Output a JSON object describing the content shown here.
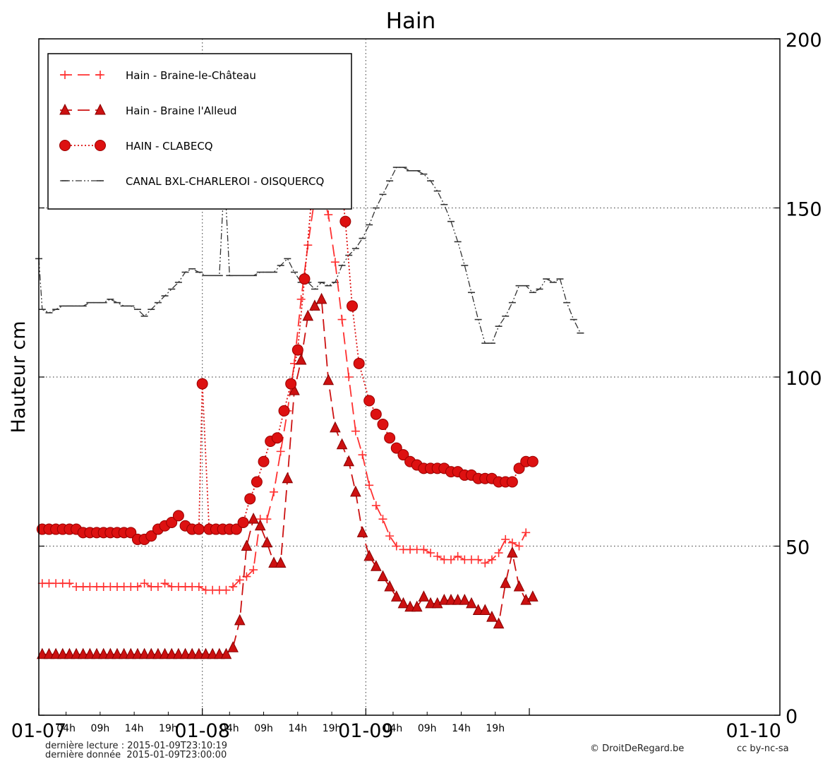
{
  "chart_data": {
    "type": "line",
    "title": "Hain",
    "ylabel": "Hauteur cm",
    "xlabel": "",
    "ylim": [
      0,
      200
    ],
    "xlim_hours": [
      0,
      72
    ],
    "y_axis_side": "right",
    "yticks": [
      0,
      50,
      100,
      150,
      200
    ],
    "grid": true,
    "legend_position": "top-left",
    "x_major_ticks": [
      {
        "hour": 0,
        "label": "01-07"
      },
      {
        "hour": 24,
        "label": "01-08"
      },
      {
        "hour": 48,
        "label": "01-09"
      },
      {
        "hour": 72,
        "label": "01-10"
      }
    ],
    "x_minor_ticks": [
      {
        "hour": 4,
        "label": "04h"
      },
      {
        "hour": 9,
        "label": "09h"
      },
      {
        "hour": 14,
        "label": "14h"
      },
      {
        "hour": 19,
        "label": "19h"
      },
      {
        "hour": 28,
        "label": "04h"
      },
      {
        "hour": 33,
        "label": "09h"
      },
      {
        "hour": 38,
        "label": "14h"
      },
      {
        "hour": 43,
        "label": "19h"
      },
      {
        "hour": 52,
        "label": "04h"
      },
      {
        "hour": 57,
        "label": "09h"
      },
      {
        "hour": 62,
        "label": "14h"
      },
      {
        "hour": 67,
        "label": "19h"
      }
    ],
    "series": [
      {
        "name": "Hain - Braine-le-Château",
        "color": "#ff3030",
        "marker": "plus",
        "line": "dashed",
        "points": [
          [
            0.5,
            39
          ],
          [
            1.5,
            39
          ],
          [
            2.5,
            39
          ],
          [
            3.5,
            39
          ],
          [
            4.5,
            39
          ],
          [
            5.5,
            38
          ],
          [
            6.5,
            38
          ],
          [
            7.5,
            38
          ],
          [
            8.5,
            38
          ],
          [
            9.5,
            38
          ],
          [
            10.5,
            38
          ],
          [
            11.5,
            38
          ],
          [
            12.5,
            38
          ],
          [
            13.5,
            38
          ],
          [
            14.5,
            38
          ],
          [
            15.5,
            39
          ],
          [
            16.5,
            38
          ],
          [
            17.5,
            38
          ],
          [
            18.5,
            39
          ],
          [
            19.5,
            38
          ],
          [
            20.5,
            38
          ],
          [
            21.5,
            38
          ],
          [
            22.5,
            38
          ],
          [
            23.5,
            38
          ],
          [
            24.5,
            37
          ],
          [
            25.5,
            37
          ],
          [
            26.5,
            37
          ],
          [
            27.5,
            37
          ],
          [
            28.5,
            38
          ],
          [
            29.5,
            40
          ],
          [
            30.5,
            41
          ],
          [
            31.5,
            43
          ],
          [
            32.5,
            58
          ],
          [
            33.5,
            58
          ],
          [
            34.5,
            66
          ],
          [
            35.5,
            78
          ],
          [
            36.5,
            90
          ],
          [
            37.5,
            104
          ],
          [
            38.5,
            123
          ],
          [
            39.5,
            139
          ],
          [
            40.5,
            153
          ],
          [
            41.5,
            155
          ],
          [
            42.5,
            148
          ],
          [
            43.5,
            134
          ],
          [
            44.5,
            117
          ],
          [
            45.5,
            100
          ],
          [
            46.5,
            84
          ],
          [
            47.5,
            77
          ],
          [
            48.5,
            68
          ],
          [
            49.5,
            62
          ],
          [
            50.5,
            58
          ],
          [
            51.5,
            53
          ],
          [
            52.5,
            50
          ],
          [
            53.5,
            49
          ],
          [
            54.5,
            49
          ],
          [
            55.5,
            49
          ],
          [
            56.5,
            49
          ],
          [
            57.5,
            48
          ],
          [
            58.5,
            47
          ],
          [
            59.5,
            46
          ],
          [
            60.5,
            46
          ],
          [
            61.5,
            47
          ],
          [
            62.5,
            46
          ],
          [
            63.5,
            46
          ],
          [
            64.5,
            46
          ],
          [
            65.5,
            45
          ],
          [
            66.5,
            46
          ],
          [
            67.5,
            48
          ],
          [
            68.5,
            52
          ],
          [
            69.5,
            51
          ],
          [
            70.5,
            50
          ],
          [
            71.5,
            54
          ]
        ]
      },
      {
        "name": "Hain - Braine l'Alleud",
        "color": "#cc1111",
        "marker": "triangle",
        "line": "dashed",
        "points": [
          [
            0.5,
            18
          ],
          [
            1.5,
            18
          ],
          [
            2.5,
            18
          ],
          [
            3.5,
            18
          ],
          [
            4.5,
            18
          ],
          [
            5.5,
            18
          ],
          [
            6.5,
            18
          ],
          [
            7.5,
            18
          ],
          [
            8.5,
            18
          ],
          [
            9.5,
            18
          ],
          [
            10.5,
            18
          ],
          [
            11.5,
            18
          ],
          [
            12.5,
            18
          ],
          [
            13.5,
            18
          ],
          [
            14.5,
            18
          ],
          [
            15.5,
            18
          ],
          [
            16.5,
            18
          ],
          [
            17.5,
            18
          ],
          [
            18.5,
            18
          ],
          [
            19.5,
            18
          ],
          [
            20.5,
            18
          ],
          [
            21.5,
            18
          ],
          [
            22.5,
            18
          ],
          [
            23.5,
            18
          ],
          [
            24.5,
            18
          ],
          [
            25.5,
            18
          ],
          [
            26.5,
            18
          ],
          [
            27.5,
            18
          ],
          [
            28.5,
            20
          ],
          [
            29.5,
            28
          ],
          [
            30.5,
            50
          ],
          [
            31.5,
            58
          ],
          [
            32.5,
            56
          ],
          [
            33.5,
            51
          ],
          [
            34.5,
            45
          ],
          [
            35.5,
            45
          ],
          [
            36.5,
            70
          ],
          [
            37.5,
            96
          ],
          [
            38.5,
            105
          ],
          [
            39.5,
            118
          ],
          [
            40.5,
            121
          ],
          [
            41.5,
            123
          ],
          [
            42.5,
            99
          ],
          [
            43.5,
            85
          ],
          [
            44.5,
            80
          ],
          [
            45.5,
            75
          ],
          [
            46.5,
            66
          ],
          [
            47.5,
            54
          ],
          [
            48.5,
            47
          ],
          [
            49.5,
            44
          ],
          [
            50.5,
            41
          ],
          [
            51.5,
            38
          ],
          [
            52.5,
            35
          ],
          [
            53.5,
            33
          ],
          [
            54.5,
            32
          ],
          [
            55.5,
            32
          ],
          [
            56.5,
            35
          ],
          [
            57.5,
            33
          ],
          [
            58.5,
            33
          ],
          [
            59.5,
            34
          ],
          [
            60.5,
            34
          ],
          [
            61.5,
            34
          ],
          [
            62.5,
            34
          ],
          [
            63.5,
            33
          ],
          [
            64.5,
            31
          ],
          [
            65.5,
            31
          ],
          [
            66.5,
            29
          ],
          [
            67.5,
            27
          ],
          [
            68.5,
            39
          ],
          [
            69.5,
            48
          ],
          [
            70.5,
            38
          ],
          [
            71.5,
            34
          ],
          [
            72.5,
            35
          ]
        ]
      },
      {
        "name": "HAIN - CLABECQ",
        "color": "#dd1111",
        "marker": "circle",
        "line": "dotted",
        "points": [
          [
            0.5,
            55
          ],
          [
            1.5,
            55
          ],
          [
            2.5,
            55
          ],
          [
            3.5,
            55
          ],
          [
            4.5,
            55
          ],
          [
            5.5,
            55
          ],
          [
            6.5,
            54
          ],
          [
            7.5,
            54
          ],
          [
            8.5,
            54
          ],
          [
            9.5,
            54
          ],
          [
            10.5,
            54
          ],
          [
            11.5,
            54
          ],
          [
            12.5,
            54
          ],
          [
            13.5,
            54
          ],
          [
            14.5,
            52
          ],
          [
            15.5,
            52
          ],
          [
            16.5,
            53
          ],
          [
            17.5,
            55
          ],
          [
            18.5,
            56
          ],
          [
            19.5,
            57
          ],
          [
            20.5,
            59
          ],
          [
            21.5,
            56
          ],
          [
            22.5,
            55
          ],
          [
            23.5,
            55
          ],
          [
            24.0,
            98
          ],
          [
            25.0,
            55
          ],
          [
            26.0,
            55
          ],
          [
            27.0,
            55
          ],
          [
            28.0,
            55
          ],
          [
            29.0,
            55
          ],
          [
            30.0,
            57
          ],
          [
            31.0,
            64
          ],
          [
            32.0,
            69
          ],
          [
            33.0,
            75
          ],
          [
            34.0,
            81
          ],
          [
            35.0,
            82
          ],
          [
            36.0,
            90
          ],
          [
            37.0,
            98
          ],
          [
            38.0,
            108
          ],
          [
            39.0,
            129
          ],
          [
            40.0,
            152
          ],
          [
            41.0,
            169
          ],
          [
            42.0,
            179
          ],
          [
            43.0,
            177
          ],
          [
            44.0,
            165
          ],
          [
            45.0,
            146
          ],
          [
            46.0,
            121
          ],
          [
            47.0,
            104
          ],
          [
            48.5,
            93
          ],
          [
            49.5,
            89
          ],
          [
            50.5,
            86
          ],
          [
            51.5,
            82
          ],
          [
            52.5,
            79
          ],
          [
            53.5,
            77
          ],
          [
            54.5,
            75
          ],
          [
            55.5,
            74
          ],
          [
            56.5,
            73
          ],
          [
            57.5,
            73
          ],
          [
            58.5,
            73
          ],
          [
            59.5,
            73
          ],
          [
            60.5,
            72
          ],
          [
            61.5,
            72
          ],
          [
            62.5,
            71
          ],
          [
            63.5,
            71
          ],
          [
            64.5,
            70
          ],
          [
            65.5,
            70
          ],
          [
            66.5,
            70
          ],
          [
            67.5,
            69
          ],
          [
            68.5,
            69
          ],
          [
            69.5,
            69
          ],
          [
            70.5,
            73
          ],
          [
            71.5,
            75
          ],
          [
            72.5,
            75
          ]
        ]
      },
      {
        "name": "CANAL BXL-CHARLEROI - OISQUERCQ",
        "color": "#333333",
        "marker": "hline",
        "line": "dashdot",
        "points": [
          [
            0,
            135
          ],
          [
            0.5,
            120
          ],
          [
            1.5,
            119
          ],
          [
            2.5,
            120
          ],
          [
            3.5,
            121
          ],
          [
            4.5,
            121
          ],
          [
            5.5,
            121
          ],
          [
            6.5,
            121
          ],
          [
            7.5,
            122
          ],
          [
            8.5,
            122
          ],
          [
            9.5,
            122
          ],
          [
            10.5,
            123
          ],
          [
            11.5,
            122
          ],
          [
            12.5,
            121
          ],
          [
            13.5,
            121
          ],
          [
            14.5,
            120
          ],
          [
            15.5,
            118
          ],
          [
            16.5,
            120
          ],
          [
            17.5,
            122
          ],
          [
            18.5,
            124
          ],
          [
            19.5,
            126
          ],
          [
            20.5,
            128
          ],
          [
            21.5,
            131
          ],
          [
            22.5,
            132
          ],
          [
            23.5,
            131
          ],
          [
            24.5,
            130
          ],
          [
            25.5,
            130
          ],
          [
            26.5,
            130
          ],
          [
            27.0,
            150
          ],
          [
            27.5,
            150
          ],
          [
            28.0,
            130
          ],
          [
            28.5,
            130
          ],
          [
            29.5,
            130
          ],
          [
            30.5,
            130
          ],
          [
            31.5,
            130
          ],
          [
            32.5,
            131
          ],
          [
            33.5,
            131
          ],
          [
            34.5,
            131
          ],
          [
            35.5,
            133
          ],
          [
            36.5,
            135
          ],
          [
            37.5,
            131
          ],
          [
            38.5,
            128
          ],
          [
            39.5,
            128
          ],
          [
            40.5,
            126
          ],
          [
            41.5,
            128
          ],
          [
            42.5,
            127
          ],
          [
            43.5,
            128
          ],
          [
            44.5,
            133
          ],
          [
            45.5,
            136
          ],
          [
            46.5,
            138
          ],
          [
            47.5,
            141
          ],
          [
            48.5,
            145
          ],
          [
            49.5,
            150
          ],
          [
            50.5,
            154
          ],
          [
            51.5,
            158
          ],
          [
            52.5,
            162
          ],
          [
            53.5,
            162
          ],
          [
            54.5,
            161
          ],
          [
            55.5,
            161
          ],
          [
            56.5,
            160
          ],
          [
            57.5,
            158
          ],
          [
            58.5,
            155
          ],
          [
            59.5,
            151
          ],
          [
            60.5,
            146
          ],
          [
            61.5,
            140
          ],
          [
            62.5,
            133
          ],
          [
            63.5,
            125
          ],
          [
            64.5,
            117
          ],
          [
            65.5,
            110
          ],
          [
            66.5,
            110
          ],
          [
            67.5,
            115
          ],
          [
            68.5,
            118
          ],
          [
            69.5,
            122
          ],
          [
            70.5,
            127
          ],
          [
            71.5,
            127
          ],
          [
            72.5,
            125
          ],
          [
            73.5,
            126
          ],
          [
            74.5,
            129
          ],
          [
            75.5,
            128
          ],
          [
            76.5,
            129
          ],
          [
            77.5,
            122
          ],
          [
            78.5,
            117
          ],
          [
            79.5,
            113
          ]
        ]
      }
    ]
  },
  "footer": {
    "last_read": "dernière lecture : 2015-01-09T23:10:19",
    "last_data": "dernière donnée  2015-01-09T23:00:00",
    "credit": "© DroitDeRegard.be",
    "license": "cc by-nc-sa"
  }
}
